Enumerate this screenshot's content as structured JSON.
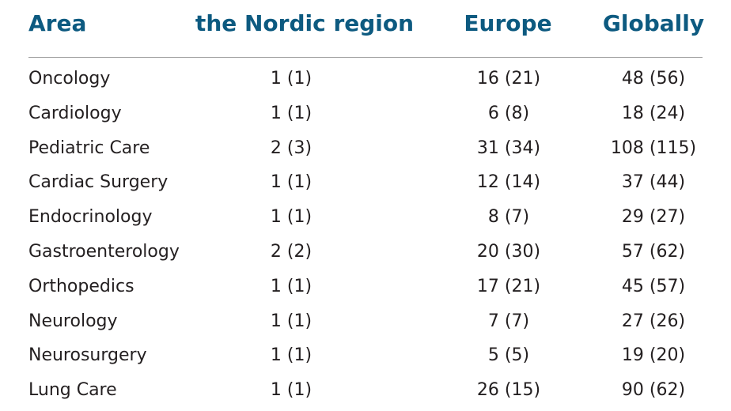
{
  "table": {
    "headers": [
      "Area",
      "the Nordic region",
      "Europe",
      "Globally"
    ],
    "rows": [
      [
        "Oncology",
        "1 (1)",
        "16 (21)",
        "48 (56)"
      ],
      [
        "Cardiology",
        "1 (1)",
        "6 (8)",
        "18 (24)"
      ],
      [
        "Pediatric Care",
        "2 (3)",
        "31 (34)",
        "108 (115)"
      ],
      [
        "Cardiac Surgery",
        "1 (1)",
        "12 (14)",
        "37 (44)"
      ],
      [
        "Endocrinology",
        "1 (1)",
        "8 (7)",
        "29 (27)"
      ],
      [
        "Gastroenterology",
        "2 (2)",
        "20 (30)",
        "57 (62)"
      ],
      [
        "Orthopedics",
        "1 (1)",
        "17 (21)",
        "45 (57)"
      ],
      [
        "Neurology",
        "1 (1)",
        "7 (7)",
        "27 (26)"
      ],
      [
        "Neurosurgery",
        "1 (1)",
        "5 (5)",
        "19 (20)"
      ],
      [
        "Lung Care",
        "1 (1)",
        "26 (15)",
        "90 (62)"
      ]
    ]
  }
}
